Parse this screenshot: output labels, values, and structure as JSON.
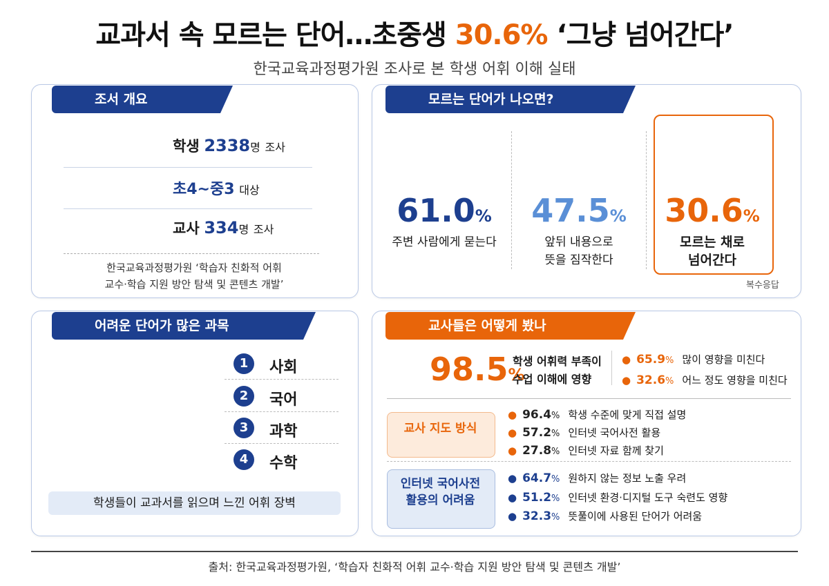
{
  "title": {
    "before": "교과서 속 모르는 단어…초중생 ",
    "highlight": "30.6%",
    "after": " ‘그냥 넘어간다’"
  },
  "subtitle": "한국교육과정평가원 조사로 본 학생 어휘 이해 실태",
  "overview": {
    "heading": "조서 개요",
    "rows": [
      {
        "label": "학생",
        "number": "2338",
        "unit": "명",
        "suffix": "조사"
      },
      {
        "label": "초4~중3",
        "suffix": "대상"
      },
      {
        "label": "교사",
        "number": "334",
        "unit": "명",
        "suffix": "조사"
      }
    ],
    "note": [
      "한국교육과정평가원 ‘학습자 친화적 어휘",
      "교수·학습 지원 방안 탐색 및 콘텐츠 개발’"
    ]
  },
  "unknown_words": {
    "heading": "모르는 단어가 나오면?",
    "items": [
      {
        "value": 61.0,
        "label": "61.0",
        "unit": "%",
        "text": [
          "주변 사람에게 묻는다"
        ]
      },
      {
        "value": 47.5,
        "label": "47.5",
        "unit": "%",
        "text": [
          "앞뒤 내용으로",
          "뜻을 짐작한다"
        ]
      },
      {
        "value": 30.6,
        "label": "30.6",
        "unit": "%",
        "text": [
          "모르는 채로",
          "넘어간다"
        ]
      }
    ],
    "note": "복수응답"
  },
  "subjects": {
    "heading": "어려운 단어가 많은 과목",
    "items": [
      {
        "rank": "1",
        "name": "사회"
      },
      {
        "rank": "2",
        "name": "국어"
      },
      {
        "rank": "3",
        "name": "과학"
      },
      {
        "rank": "4",
        "name": "수학"
      }
    ],
    "caption": "학생들이 교과서를 읽으며 느낀 어휘 장벽"
  },
  "teachers": {
    "heading": "교사들은 어떻게 봤나",
    "main": {
      "label": "98.5",
      "unit": "%",
      "text": [
        "학생 어휘력 부족이",
        "수업 이해에 영향"
      ]
    },
    "breakdown": [
      {
        "label": "65.9",
        "unit": "%",
        "text": "많이 영향을 미친다"
      },
      {
        "label": "32.6",
        "unit": "%",
        "text": "어느 정도 영향을 미친다"
      }
    ],
    "groups": [
      {
        "title": [
          "교사 지도 방식"
        ],
        "items": [
          {
            "label": "96.4",
            "unit": "%",
            "text": "학생 수준에 맞게 직접 설명"
          },
          {
            "label": "57.2",
            "unit": "%",
            "text": "인터넷 국어사전 활용"
          },
          {
            "label": "27.8",
            "unit": "%",
            "text": "인터넷 자료 함께 찾기"
          }
        ]
      },
      {
        "title": [
          "인터넷 국어사전",
          "활용의 어려움"
        ],
        "items": [
          {
            "label": "64.7",
            "unit": "%",
            "text": "원하지 않는 정보 노출 우려"
          },
          {
            "label": "51.2",
            "unit": "%",
            "text": "인터넷 환경·디지털 도구 숙련도 영향"
          },
          {
            "label": "32.3",
            "unit": "%",
            "text": "뜻풀이에 사용된 단어가 어려움"
          }
        ]
      }
    ]
  },
  "source": "출처: 한국교육과정평가원, ‘학습자 친화적 어휘 교수·학습 지원 방안 탐색 및 콘텐츠 개발’"
}
